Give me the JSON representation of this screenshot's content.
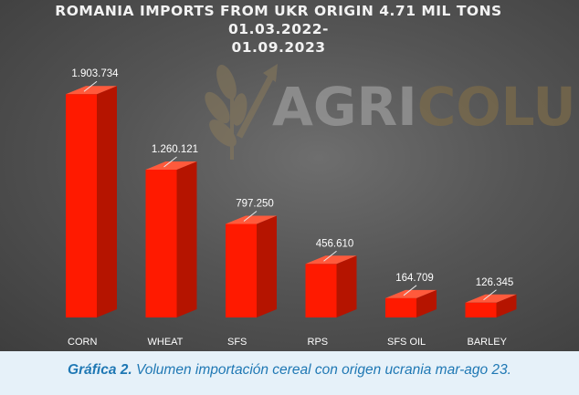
{
  "chart_data": {
    "type": "bar",
    "title_line1": "ROMANIA IMPORTS FROM UKR ORIGIN 4.71 MIL TONS 01.03.2022-",
    "title_line2": "01.09.2023",
    "categories": [
      "CORN",
      "WHEAT",
      "SFS",
      "RPS",
      "SFS OIL",
      "BARLEY"
    ],
    "values": [
      1903734,
      1260121,
      797250,
      456610,
      164709,
      126345
    ],
    "value_labels": [
      "1.903.734",
      "1.260.121",
      "797.250",
      "456.610",
      "164.709",
      "126.345"
    ],
    "ylim": [
      0,
      2100000
    ],
    "grid": false,
    "legend": "none",
    "bar_color": "#ff1a00",
    "bar_side_color": "#b51400",
    "bar_top_color": "#ff5a3c"
  },
  "watermark": {
    "text_part1": "AGRI",
    "text_part2": "COLUMN",
    "icon": "wheat-arrow-icon",
    "color_part1": "#9a9a9a",
    "color_part2": "#7a6a4a"
  },
  "caption": {
    "label": "Gráfica 2.",
    "text": " Volumen importación cereal con origen ucrania mar-ago 23."
  }
}
